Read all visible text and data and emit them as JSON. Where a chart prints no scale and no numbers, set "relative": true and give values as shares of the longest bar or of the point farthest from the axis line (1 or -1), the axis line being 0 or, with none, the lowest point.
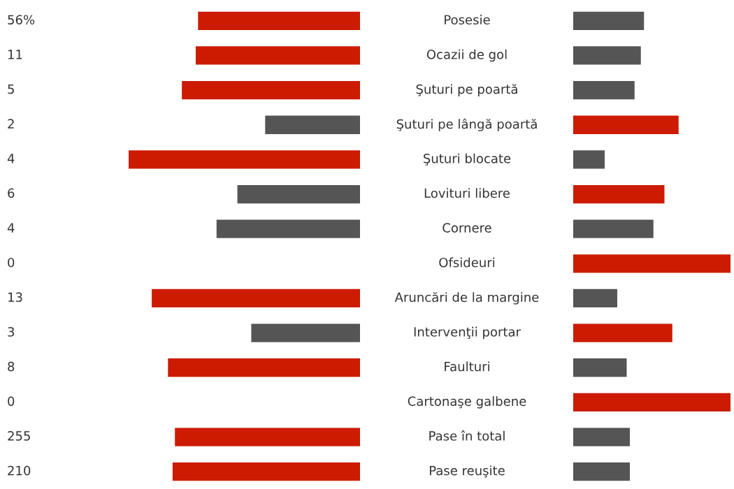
{
  "chart_data": [
    {
      "type": "other",
      "annotations": [
        "56%",
        "11",
        "5",
        "2",
        "4",
        "6",
        "4",
        "0",
        "13",
        "3",
        "8",
        "0",
        "255",
        "210"
      ]
    },
    {
      "type": "bar",
      "orientation": "horizontal",
      "relative": true,
      "categories": [
        "Posesie",
        "Ocazii de gol",
        "Şuturi pe poartă",
        "Şuturi pe lângă poartă",
        "Şuturi blocate",
        "Lovituri libere",
        "Cornere",
        "Ofsideuri",
        "Aruncări de la margine",
        "Intervenţii portar",
        "Faulturi",
        "Cartonaşe galbene",
        "Pase în total",
        "Pase reuşite"
      ],
      "values": [
        0.7,
        0.71,
        0.77,
        0.41,
        1,
        0.53,
        0.62,
        0,
        0.9,
        0.47,
        0.83,
        0,
        0.8,
        0.81
      ],
      "colors": [
        "#cc1b00",
        "#cc1b00",
        "#cc1b00",
        "#555555",
        "#cc1b00",
        "#555555",
        "#555555",
        "#cc1b00",
        "#cc1b00",
        "#555555",
        "#cc1b00",
        "#cc1b00",
        "#cc1b00",
        "#cc1b00"
      ]
    },
    {
      "type": "bar",
      "orientation": "horizontal",
      "relative": true,
      "categories": [
        null,
        null,
        null,
        null,
        null,
        null,
        null,
        null,
        null,
        null,
        null,
        null,
        null,
        null
      ],
      "values": [
        0.45,
        0.43,
        0.39,
        0.67,
        0.2,
        0.58,
        0.51,
        1,
        0.28,
        0.63,
        0.34,
        1,
        0.36,
        0.36
      ],
      "colors": [
        "#555555",
        "#555555",
        "#555555",
        "#cc1b00",
        "#555555",
        "#cc1b00",
        "#555555",
        "#cc1b00",
        "#555555",
        "#cc1b00",
        "#555555",
        "#cc1b00",
        "#555555",
        "#555555"
      ]
    }
  ]
}
